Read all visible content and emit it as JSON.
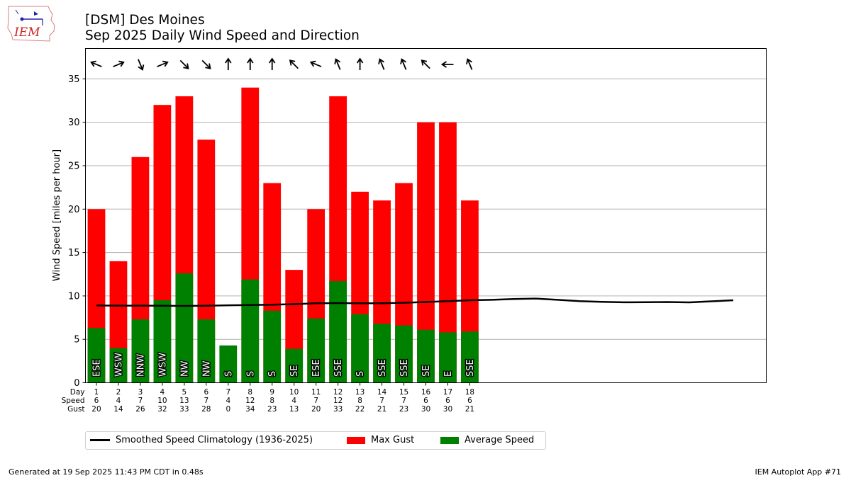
{
  "header": {
    "title": "[DSM] Des Moines",
    "subtitle": "Sep 2025 Daily Wind Speed and Direction",
    "logo_text": "IEM"
  },
  "footer": {
    "left": "Generated at 19 Sep 2025 11:43 PM CDT in 0.48s",
    "right": "IEM Autoplot App #71"
  },
  "legend": {
    "items": [
      {
        "label": "Smoothed Speed Climatology (1936-2025)",
        "kind": "line",
        "color": "#000000"
      },
      {
        "label": "Max Gust",
        "kind": "box",
        "color": "#ff0000"
      },
      {
        "label": "Average Speed",
        "kind": "box",
        "color": "#008000"
      }
    ]
  },
  "chart_data": {
    "type": "bar",
    "title": "[DSM] Des Moines",
    "subtitle": "Sep 2025 Daily Wind Speed and Direction",
    "xlabel": "",
    "ylabel": "Wind Speed [miles per hour]",
    "xlim": [
      0.5,
      31.5
    ],
    "ylim": [
      0,
      38.5
    ],
    "yticks": [
      0,
      5,
      10,
      15,
      20,
      25,
      30,
      35
    ],
    "grid": "horizontal",
    "legend_position": "bottom",
    "row_labels": [
      "Day",
      "Speed",
      "Gust"
    ],
    "days": [
      1,
      2,
      3,
      4,
      5,
      6,
      7,
      8,
      9,
      10,
      11,
      12,
      13,
      14,
      15,
      16,
      17,
      18
    ],
    "avg_speed": [
      6.3,
      4.0,
      7.3,
      9.5,
      12.6,
      7.3,
      4.3,
      11.9,
      8.3,
      3.9,
      7.4,
      11.7,
      7.9,
      6.8,
      6.6,
      6.1,
      5.8,
      5.9
    ],
    "speed_labels": [
      "6",
      "4",
      "7",
      "10",
      "13",
      "7",
      "4",
      "12",
      "8",
      "4",
      "7",
      "12",
      "8",
      "7",
      "7",
      "6",
      "6",
      "6"
    ],
    "max_gust": [
      20,
      14,
      26,
      32,
      33,
      28,
      0,
      34,
      23,
      13,
      20,
      33,
      22,
      21,
      23,
      30,
      30,
      21
    ],
    "gust_labels": [
      "20",
      "14",
      "26",
      "32",
      "33",
      "28",
      "0",
      "34",
      "23",
      "13",
      "20",
      "33",
      "22",
      "21",
      "23",
      "30",
      "30",
      "21"
    ],
    "direction": [
      "ESE",
      "WSW",
      "NNW",
      "WSW",
      "NW",
      "NW",
      "S",
      "S",
      "S",
      "SE",
      "ESE",
      "SSE",
      "S",
      "SSE",
      "SSE",
      "SE",
      "E",
      "SSE"
    ],
    "direction_degrees": [
      112.5,
      247.5,
      337.5,
      247.5,
      315,
      315,
      180,
      180,
      180,
      135,
      112.5,
      157.5,
      180,
      157.5,
      157.5,
      135,
      90,
      157.5
    ],
    "climatology": {
      "name": "Smoothed Speed Climatology (1936-2025)",
      "x": [
        1,
        2,
        3,
        4,
        5,
        6,
        7,
        8,
        9,
        10,
        11,
        12,
        13,
        14,
        15,
        16,
        17,
        18,
        19,
        20,
        21,
        22,
        23,
        24,
        25,
        26,
        27,
        28,
        29,
        30
      ],
      "values": [
        8.9,
        8.88,
        8.88,
        8.87,
        8.85,
        8.87,
        8.92,
        8.95,
        9.0,
        9.05,
        9.15,
        9.18,
        9.15,
        9.15,
        9.22,
        9.3,
        9.4,
        9.5,
        9.55,
        9.65,
        9.7,
        9.55,
        9.4,
        9.32,
        9.27,
        9.28,
        9.3,
        9.26,
        9.38,
        9.5
      ]
    },
    "colors": {
      "avg": "#008000",
      "gust": "#ff0000",
      "clim": "#000000",
      "grid": "#b0b0b0"
    }
  }
}
